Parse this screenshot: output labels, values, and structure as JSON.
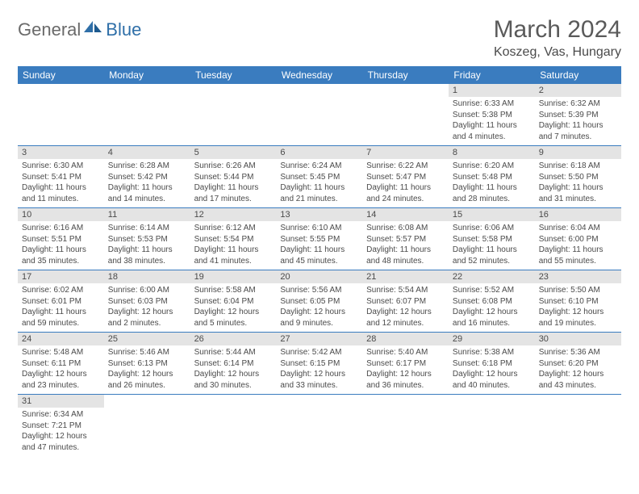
{
  "logo": {
    "general": "General",
    "blue": "Blue",
    "accent_color": "#2f6fa8",
    "gray": "#6a6a6a"
  },
  "title": "March 2024",
  "location": "Koszeg, Vas, Hungary",
  "header_bg": "#3a7cbf",
  "daynum_bg": "#e4e4e4",
  "text_color": "#4a4a4a",
  "weekdays": [
    "Sunday",
    "Monday",
    "Tuesday",
    "Wednesday",
    "Thursday",
    "Friday",
    "Saturday"
  ],
  "weeks": [
    [
      null,
      null,
      null,
      null,
      null,
      {
        "n": "1",
        "sr": "6:33 AM",
        "ss": "5:38 PM",
        "dl": "11 hours and 4 minutes."
      },
      {
        "n": "2",
        "sr": "6:32 AM",
        "ss": "5:39 PM",
        "dl": "11 hours and 7 minutes."
      }
    ],
    [
      {
        "n": "3",
        "sr": "6:30 AM",
        "ss": "5:41 PM",
        "dl": "11 hours and 11 minutes."
      },
      {
        "n": "4",
        "sr": "6:28 AM",
        "ss": "5:42 PM",
        "dl": "11 hours and 14 minutes."
      },
      {
        "n": "5",
        "sr": "6:26 AM",
        "ss": "5:44 PM",
        "dl": "11 hours and 17 minutes."
      },
      {
        "n": "6",
        "sr": "6:24 AM",
        "ss": "5:45 PM",
        "dl": "11 hours and 21 minutes."
      },
      {
        "n": "7",
        "sr": "6:22 AM",
        "ss": "5:47 PM",
        "dl": "11 hours and 24 minutes."
      },
      {
        "n": "8",
        "sr": "6:20 AM",
        "ss": "5:48 PM",
        "dl": "11 hours and 28 minutes."
      },
      {
        "n": "9",
        "sr": "6:18 AM",
        "ss": "5:50 PM",
        "dl": "11 hours and 31 minutes."
      }
    ],
    [
      {
        "n": "10",
        "sr": "6:16 AM",
        "ss": "5:51 PM",
        "dl": "11 hours and 35 minutes."
      },
      {
        "n": "11",
        "sr": "6:14 AM",
        "ss": "5:53 PM",
        "dl": "11 hours and 38 minutes."
      },
      {
        "n": "12",
        "sr": "6:12 AM",
        "ss": "5:54 PM",
        "dl": "11 hours and 41 minutes."
      },
      {
        "n": "13",
        "sr": "6:10 AM",
        "ss": "5:55 PM",
        "dl": "11 hours and 45 minutes."
      },
      {
        "n": "14",
        "sr": "6:08 AM",
        "ss": "5:57 PM",
        "dl": "11 hours and 48 minutes."
      },
      {
        "n": "15",
        "sr": "6:06 AM",
        "ss": "5:58 PM",
        "dl": "11 hours and 52 minutes."
      },
      {
        "n": "16",
        "sr": "6:04 AM",
        "ss": "6:00 PM",
        "dl": "11 hours and 55 minutes."
      }
    ],
    [
      {
        "n": "17",
        "sr": "6:02 AM",
        "ss": "6:01 PM",
        "dl": "11 hours and 59 minutes."
      },
      {
        "n": "18",
        "sr": "6:00 AM",
        "ss": "6:03 PM",
        "dl": "12 hours and 2 minutes."
      },
      {
        "n": "19",
        "sr": "5:58 AM",
        "ss": "6:04 PM",
        "dl": "12 hours and 5 minutes."
      },
      {
        "n": "20",
        "sr": "5:56 AM",
        "ss": "6:05 PM",
        "dl": "12 hours and 9 minutes."
      },
      {
        "n": "21",
        "sr": "5:54 AM",
        "ss": "6:07 PM",
        "dl": "12 hours and 12 minutes."
      },
      {
        "n": "22",
        "sr": "5:52 AM",
        "ss": "6:08 PM",
        "dl": "12 hours and 16 minutes."
      },
      {
        "n": "23",
        "sr": "5:50 AM",
        "ss": "6:10 PM",
        "dl": "12 hours and 19 minutes."
      }
    ],
    [
      {
        "n": "24",
        "sr": "5:48 AM",
        "ss": "6:11 PM",
        "dl": "12 hours and 23 minutes."
      },
      {
        "n": "25",
        "sr": "5:46 AM",
        "ss": "6:13 PM",
        "dl": "12 hours and 26 minutes."
      },
      {
        "n": "26",
        "sr": "5:44 AM",
        "ss": "6:14 PM",
        "dl": "12 hours and 30 minutes."
      },
      {
        "n": "27",
        "sr": "5:42 AM",
        "ss": "6:15 PM",
        "dl": "12 hours and 33 minutes."
      },
      {
        "n": "28",
        "sr": "5:40 AM",
        "ss": "6:17 PM",
        "dl": "12 hours and 36 minutes."
      },
      {
        "n": "29",
        "sr": "5:38 AM",
        "ss": "6:18 PM",
        "dl": "12 hours and 40 minutes."
      },
      {
        "n": "30",
        "sr": "5:36 AM",
        "ss": "6:20 PM",
        "dl": "12 hours and 43 minutes."
      }
    ],
    [
      {
        "n": "31",
        "sr": "6:34 AM",
        "ss": "7:21 PM",
        "dl": "12 hours and 47 minutes."
      },
      null,
      null,
      null,
      null,
      null,
      null
    ]
  ],
  "labels": {
    "sunrise": "Sunrise: ",
    "sunset": "Sunset: ",
    "daylight": "Daylight: "
  }
}
